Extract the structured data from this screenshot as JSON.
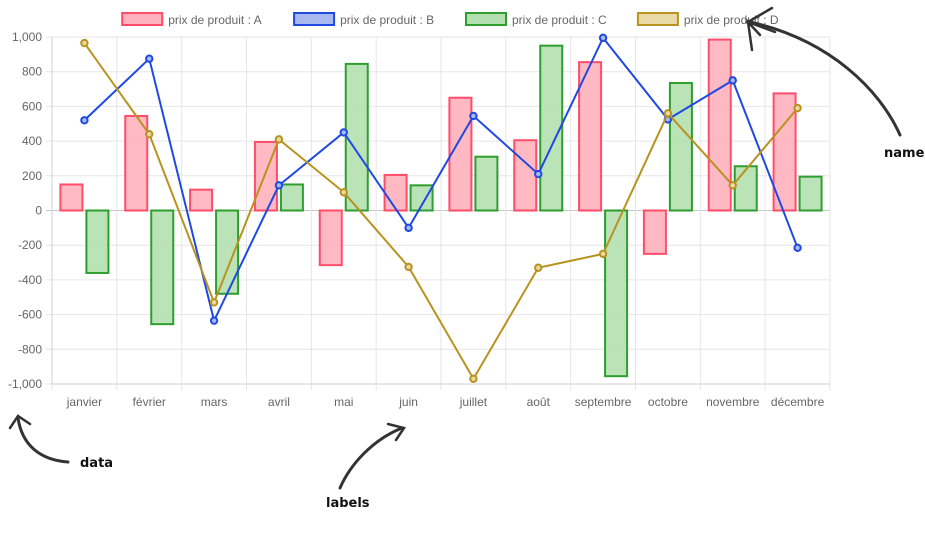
{
  "chart_data": {
    "type": "bar",
    "categories": [
      "janvier",
      "février",
      "mars",
      "avril",
      "mai",
      "juin",
      "juillet",
      "août",
      "septembre",
      "octobre",
      "novembre",
      "décembre"
    ],
    "ylim": [
      -1000,
      1000
    ],
    "yticks": [
      "1,000",
      "800",
      "600",
      "400",
      "200",
      "0",
      "-200",
      "-400",
      "-600",
      "-800",
      "-1,000"
    ],
    "grid": true,
    "legend_position": "top",
    "series": [
      {
        "name": "prix de produit : A",
        "type": "bar",
        "color": "#ff4d6a",
        "fill": "#ffb1bd",
        "values": [
          150,
          545,
          120,
          395,
          -315,
          205,
          650,
          405,
          855,
          -250,
          985,
          675
        ]
      },
      {
        "name": "prix de produit : B",
        "type": "line",
        "color": "#1f49e0",
        "fill": "#a8b9f0",
        "values": [
          520,
          875,
          -635,
          145,
          450,
          -100,
          545,
          210,
          995,
          525,
          750,
          -215
        ]
      },
      {
        "name": "prix de produit : C",
        "type": "bar",
        "color": "#2e9e2e",
        "fill": "#b4e0b0",
        "values": [
          -360,
          -655,
          -480,
          150,
          845,
          145,
          310,
          950,
          -955,
          735,
          255,
          195
        ]
      },
      {
        "name": "prix de produit : D",
        "type": "line",
        "color": "#b8931f",
        "fill": "#e9d9a6",
        "values": [
          965,
          440,
          -530,
          410,
          105,
          -325,
          -970,
          -330,
          -250,
          560,
          145,
          590
        ]
      }
    ]
  },
  "annotations": {
    "name": "name",
    "data": "data",
    "labels": "labels"
  }
}
